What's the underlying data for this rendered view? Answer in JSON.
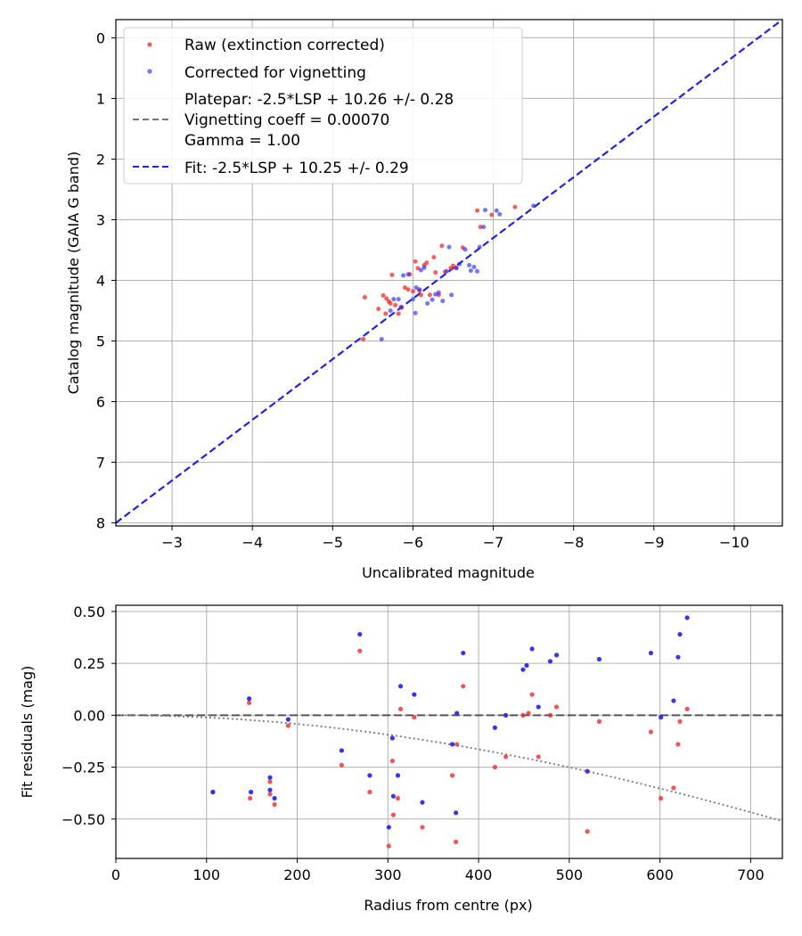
{
  "chart_data": [
    {
      "type": "scatter",
      "xlabel": "Uncalibrated magnitude",
      "ylabel": "Catalog magnitude (GAIA G band)",
      "xlim": [
        -2.3,
        -10.6
      ],
      "ylim": [
        8.05,
        -0.3
      ],
      "x_inverted": true,
      "y_inverted": true,
      "grid": true,
      "legend_position": "top-left",
      "xticks": [
        "−3",
        "−4",
        "−5",
        "−6",
        "−7",
        "−8",
        "−9",
        "−10"
      ],
      "xtick_values": [
        -3,
        -4,
        -5,
        -6,
        -7,
        -8,
        -9,
        -10
      ],
      "yticks": [
        "0",
        "1",
        "2",
        "3",
        "4",
        "5",
        "6",
        "7",
        "8"
      ],
      "ytick_values": [
        0,
        1,
        2,
        3,
        4,
        5,
        6,
        7,
        8
      ],
      "legend": [
        {
          "label": "Raw (extinction corrected)",
          "marker": "dot",
          "color": "#ef2b2b"
        },
        {
          "label": "Corrected for vignetting",
          "marker": "dot",
          "color": "#2b2bef"
        },
        {
          "label": "Platepar: -2.5*LSP + 10.26 +/- 0.28",
          "marker": "none",
          "color": ""
        },
        {
          "label": "Vignetting coeff = 0.00070",
          "marker": "dash",
          "color": "#777777"
        },
        {
          "label": "Gamma = 1.00",
          "marker": "none",
          "color": ""
        },
        {
          "label": "Fit: -2.5*LSP + 10.25 +/- 0.29",
          "marker": "dash",
          "color": "#2222dd"
        }
      ],
      "fit_line": {
        "x": [
          -2.3,
          -10.6
        ],
        "y": [
          8.0,
          -0.3
        ],
        "color": "#2222dd"
      },
      "series": [
        {
          "name": "Raw (extinction corrected)",
          "color": "#ef2b2b",
          "points": [
            [
              -5.38,
              4.97
            ],
            [
              -5.4,
              4.28
            ],
            [
              -5.57,
              4.47
            ],
            [
              -5.63,
              4.25
            ],
            [
              -5.66,
              4.55
            ],
            [
              -5.67,
              4.3
            ],
            [
              -5.7,
              4.35
            ],
            [
              -5.72,
              4.38
            ],
            [
              -5.74,
              3.91
            ],
            [
              -5.78,
              4.41
            ],
            [
              -5.82,
              4.55
            ],
            [
              -5.86,
              4.45
            ],
            [
              -5.9,
              4.12
            ],
            [
              -5.94,
              4.15
            ],
            [
              -5.96,
              3.9
            ],
            [
              -6.0,
              4.18
            ],
            [
              -6.03,
              3.69
            ],
            [
              -6.06,
              3.8
            ],
            [
              -6.08,
              4.17
            ],
            [
              -6.1,
              4.24
            ],
            [
              -6.14,
              3.75
            ],
            [
              -6.17,
              3.71
            ],
            [
              -6.21,
              4.24
            ],
            [
              -6.26,
              3.62
            ],
            [
              -6.28,
              3.87
            ],
            [
              -6.32,
              4.24
            ],
            [
              -6.36,
              3.43
            ],
            [
              -6.4,
              3.86
            ],
            [
              -6.47,
              3.8
            ],
            [
              -6.5,
              3.76
            ],
            [
              -6.54,
              3.79
            ],
            [
              -6.62,
              3.46
            ],
            [
              -6.8,
              2.85
            ],
            [
              -6.84,
              3.12
            ],
            [
              -6.98,
              2.92
            ],
            [
              -7.27,
              2.79
            ]
          ]
        },
        {
          "name": "Corrected for vignetting",
          "color": "#2b2bef",
          "points": [
            [
              -5.61,
              4.97
            ],
            [
              -5.72,
              4.5
            ],
            [
              -5.76,
              4.31
            ],
            [
              -5.82,
              4.31
            ],
            [
              -5.85,
              4.44
            ],
            [
              -5.88,
              3.92
            ],
            [
              -5.94,
              3.9
            ],
            [
              -6.0,
              4.31
            ],
            [
              -6.03,
              4.54
            ],
            [
              -6.04,
              4.12
            ],
            [
              -6.08,
              4.15
            ],
            [
              -6.1,
              3.83
            ],
            [
              -6.14,
              3.79
            ],
            [
              -6.18,
              4.38
            ],
            [
              -6.24,
              4.32
            ],
            [
              -6.28,
              4.23
            ],
            [
              -6.32,
              4.2
            ],
            [
              -6.37,
              4.34
            ],
            [
              -6.42,
              3.85
            ],
            [
              -6.45,
              3.45
            ],
            [
              -6.48,
              4.24
            ],
            [
              -6.54,
              3.8
            ],
            [
              -6.58,
              3.73
            ],
            [
              -6.65,
              3.49
            ],
            [
              -6.7,
              3.75
            ],
            [
              -6.72,
              3.84
            ],
            [
              -6.76,
              3.78
            ],
            [
              -6.8,
              3.85
            ],
            [
              -6.83,
              3.45
            ],
            [
              -6.88,
              3.12
            ],
            [
              -6.9,
              2.84
            ],
            [
              -7.04,
              2.85
            ],
            [
              -7.08,
              2.91
            ],
            [
              -7.5,
              2.77
            ]
          ]
        }
      ]
    },
    {
      "type": "scatter",
      "xlabel": "Radius from centre (px)",
      "ylabel": "Fit residuals (mag)",
      "xlim": [
        0,
        735
      ],
      "ylim": [
        -0.69,
        0.53
      ],
      "grid": true,
      "xticks": [
        "0",
        "100",
        "200",
        "300",
        "400",
        "500",
        "600",
        "700"
      ],
      "xtick_values": [
        0,
        100,
        200,
        300,
        400,
        500,
        600,
        700
      ],
      "yticks": [
        "−0.50",
        "−0.25",
        "0.00",
        "0.25",
        "0.50"
      ],
      "ytick_values": [
        -0.5,
        -0.25,
        0.0,
        0.25,
        0.5
      ],
      "zero_line": {
        "y": 0.0,
        "color": "#555555"
      },
      "vignetting_curve": {
        "coeff": 0.0007,
        "color": "#777777"
      },
      "series": [
        {
          "name": "Raw (extinction corrected)",
          "color": "#ef2b2b",
          "points": [
            [
              107,
              -0.37
            ],
            [
              147,
              0.06
            ],
            [
              148,
              -0.4
            ],
            [
              170,
              -0.32
            ],
            [
              170,
              -0.38
            ],
            [
              175,
              -0.43
            ],
            [
              190,
              -0.05
            ],
            [
              249,
              -0.24
            ],
            [
              269,
              0.31
            ],
            [
              280,
              -0.37
            ],
            [
              301,
              -0.63
            ],
            [
              305,
              -0.22
            ],
            [
              306,
              -0.48
            ],
            [
              311,
              -0.4
            ],
            [
              314,
              0.03
            ],
            [
              329,
              -0.01
            ],
            [
              338,
              -0.54
            ],
            [
              371,
              -0.29
            ],
            [
              375,
              -0.61
            ],
            [
              376,
              -0.14
            ],
            [
              383,
              0.14
            ],
            [
              418,
              -0.25
            ],
            [
              430,
              -0.2
            ],
            [
              449,
              0.0
            ],
            [
              455,
              0.01
            ],
            [
              459,
              0.1
            ],
            [
              466,
              -0.2
            ],
            [
              479,
              0.0
            ],
            [
              486,
              0.04
            ],
            [
              520,
              -0.56
            ],
            [
              533,
              -0.03
            ],
            [
              590,
              -0.08
            ],
            [
              601,
              -0.4
            ],
            [
              615,
              -0.35
            ],
            [
              620,
              -0.14
            ],
            [
              622,
              -0.03
            ],
            [
              630,
              0.03
            ]
          ]
        },
        {
          "name": "Corrected for vignetting",
          "color": "#2b2bef",
          "points": [
            [
              107,
              -0.37
            ],
            [
              147,
              0.08
            ],
            [
              149,
              -0.37
            ],
            [
              170,
              -0.3
            ],
            [
              170,
              -0.36
            ],
            [
              175,
              -0.4
            ],
            [
              190,
              -0.02
            ],
            [
              249,
              -0.17
            ],
            [
              269,
              0.39
            ],
            [
              280,
              -0.29
            ],
            [
              301,
              -0.54
            ],
            [
              305,
              -0.11
            ],
            [
              306,
              -0.39
            ],
            [
              311,
              -0.29
            ],
            [
              314,
              0.14
            ],
            [
              329,
              0.1
            ],
            [
              338,
              -0.42
            ],
            [
              371,
              -0.14
            ],
            [
              375,
              -0.47
            ],
            [
              376,
              0.01
            ],
            [
              383,
              0.3
            ],
            [
              418,
              -0.06
            ],
            [
              430,
              0.0
            ],
            [
              449,
              0.22
            ],
            [
              453,
              0.24
            ],
            [
              459,
              0.32
            ],
            [
              466,
              0.04
            ],
            [
              479,
              0.26
            ],
            [
              486,
              0.29
            ],
            [
              520,
              -0.27
            ],
            [
              533,
              0.27
            ],
            [
              590,
              0.3
            ],
            [
              601,
              -0.01
            ],
            [
              615,
              0.07
            ],
            [
              620,
              0.28
            ],
            [
              622,
              0.39
            ],
            [
              630,
              0.47
            ]
          ]
        }
      ]
    }
  ]
}
